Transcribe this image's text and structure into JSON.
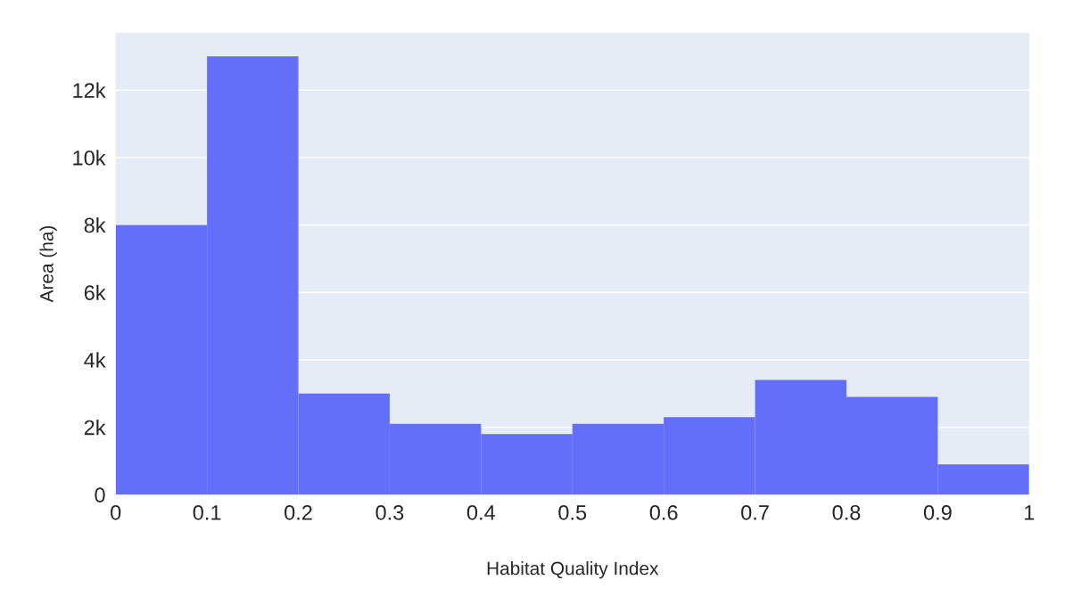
{
  "chart_data": {
    "type": "histogram",
    "xlabel": "Habitat Quality Index",
    "ylabel": "Area (ha)",
    "bins": [
      0,
      0.1,
      0.2,
      0.3,
      0.4,
      0.5,
      0.6,
      0.7,
      0.8,
      0.9,
      1
    ],
    "values": [
      8000,
      13000,
      3000,
      2100,
      1800,
      2100,
      2300,
      3400,
      2900,
      900
    ],
    "color": "#636efa",
    "xlim": [
      0,
      1
    ],
    "ylim": [
      0,
      13700
    ],
    "xticks": [
      0,
      0.1,
      0.2,
      0.3,
      0.4,
      0.5,
      0.6,
      0.7,
      0.8,
      0.9,
      1
    ],
    "yticks": [
      0,
      {
        "value": 2000,
        "label": "2k"
      },
      {
        "value": 4000,
        "label": "4k"
      },
      {
        "value": 6000,
        "label": "6k"
      },
      {
        "value": 8000,
        "label": "8k"
      },
      {
        "value": 10000,
        "label": "10k"
      },
      {
        "value": 12000,
        "label": "12k"
      }
    ],
    "grid": "y"
  }
}
